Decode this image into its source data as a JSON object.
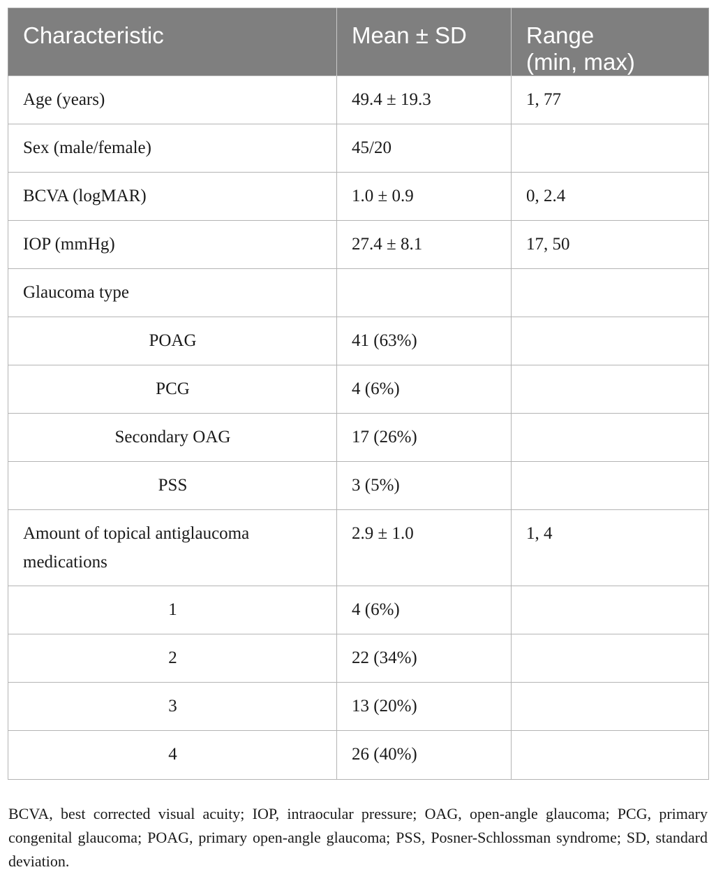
{
  "table": {
    "headers": [
      "Characteristic",
      "Mean ± SD",
      "Range",
      "(min, max)"
    ],
    "rows": [
      {
        "characteristic": "Age (years)",
        "mean_sd": "49.4 ± 19.3",
        "range": "1, 77"
      },
      {
        "characteristic": "Sex (male/female)",
        "mean_sd": "45/20",
        "range": ""
      },
      {
        "characteristic": "BCVA (logMAR)",
        "mean_sd": "1.0 ± 0.9",
        "range": "0, 2.4"
      },
      {
        "characteristic": "IOP (mmHg)",
        "mean_sd": "27.4 ± 8.1",
        "range": "17, 50"
      },
      {
        "characteristic": "Glaucoma type",
        "mean_sd": "",
        "range": ""
      },
      {
        "characteristic": "POAG",
        "mean_sd": "41 (63%)",
        "range": ""
      },
      {
        "characteristic": "PCG",
        "mean_sd": "4 (6%)",
        "range": ""
      },
      {
        "characteristic": "Secondary OAG",
        "mean_sd": "17 (26%)",
        "range": ""
      },
      {
        "characteristic": "PSS",
        "mean_sd": "3 (5%)",
        "range": ""
      },
      {
        "characteristic": "Amount of topical antiglaucoma medications",
        "mean_sd": "2.9 ± 1.0",
        "range": "1, 4"
      },
      {
        "characteristic": "1",
        "mean_sd": "4 (6%)",
        "range": ""
      },
      {
        "characteristic": "2",
        "mean_sd": "22 (34%)",
        "range": ""
      },
      {
        "characteristic": "3",
        "mean_sd": "13 (20%)",
        "range": ""
      },
      {
        "characteristic": "4",
        "mean_sd": "26 (40%)",
        "range": ""
      }
    ]
  },
  "footnote": "BCVA, best corrected visual acuity; IOP, intraocular pressure; OAG, open-angle glaucoma; PCG, primary congenital glaucoma; POAG, primary open-angle glaucoma; PSS, Posner-Schlossman syndrome; SD, standard deviation."
}
